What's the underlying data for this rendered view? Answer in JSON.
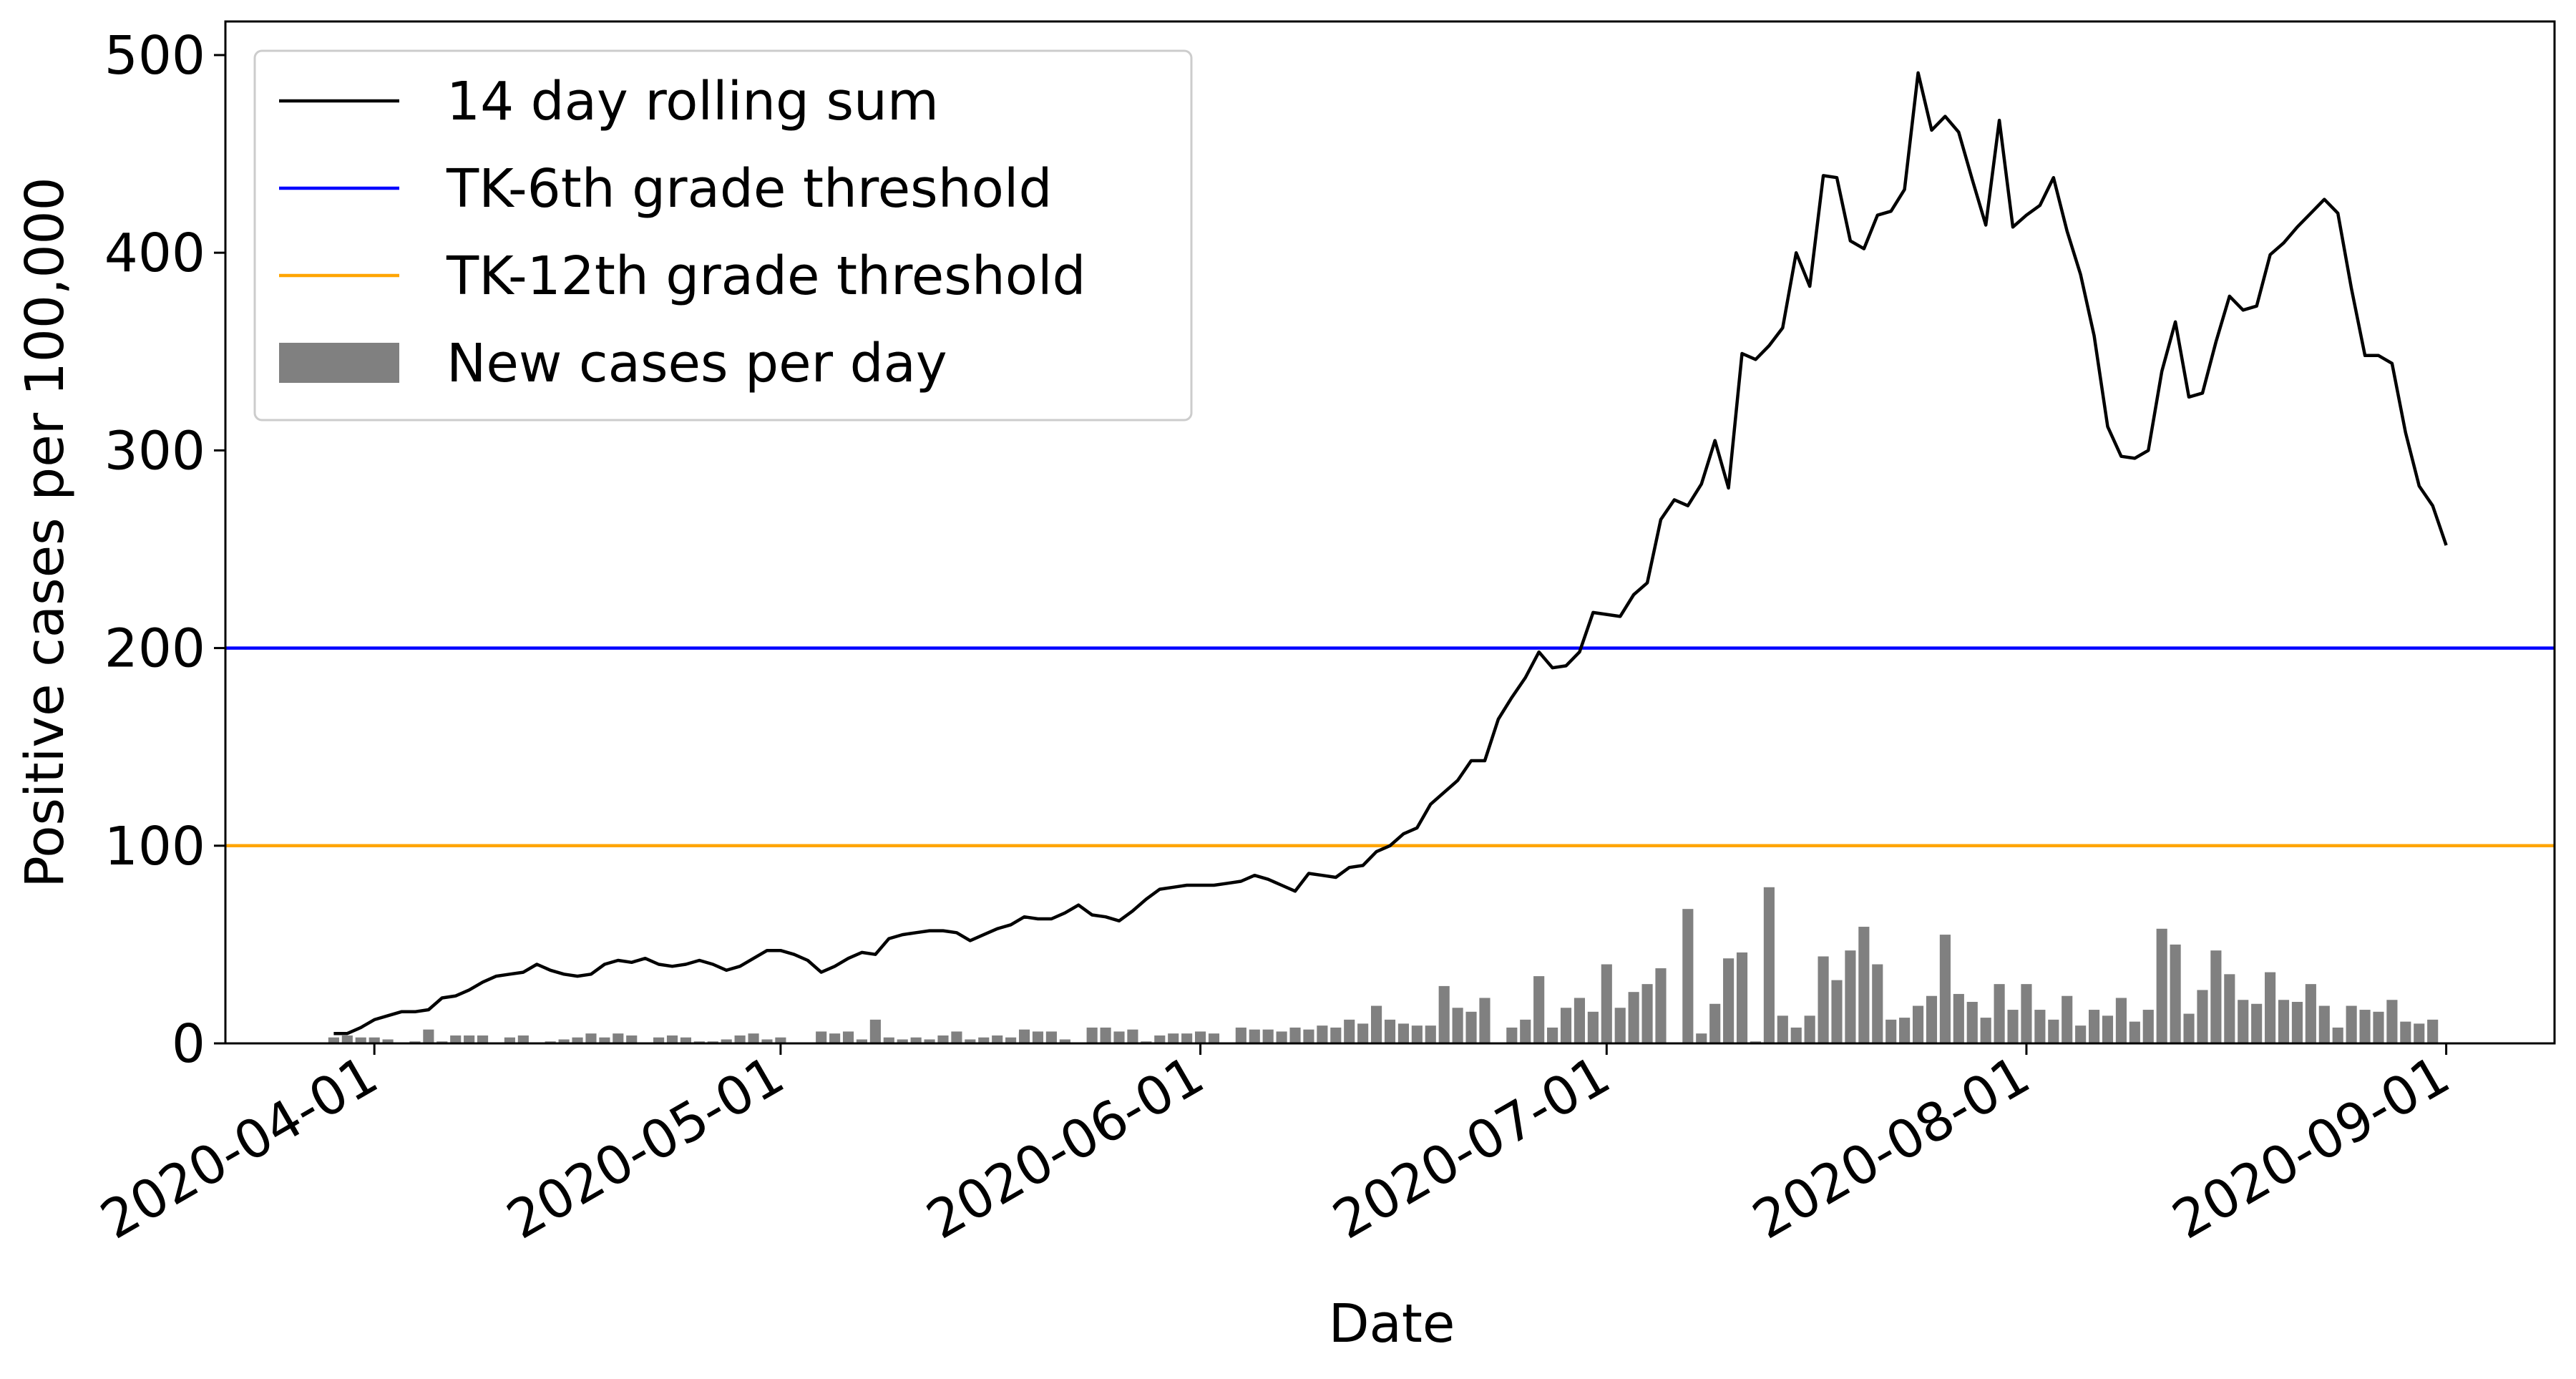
{
  "chart_data": {
    "type": "bar_line",
    "xlabel": "Date",
    "ylabel": "Positive cases per 100,000",
    "x": [
      "2020-03-29",
      "2020-03-30",
      "2020-03-31",
      "2020-04-01",
      "2020-04-02",
      "2020-04-03",
      "2020-04-04",
      "2020-04-05",
      "2020-04-06",
      "2020-04-07",
      "2020-04-08",
      "2020-04-09",
      "2020-04-10",
      "2020-04-11",
      "2020-04-12",
      "2020-04-13",
      "2020-04-14",
      "2020-04-15",
      "2020-04-16",
      "2020-04-17",
      "2020-04-18",
      "2020-04-19",
      "2020-04-20",
      "2020-04-21",
      "2020-04-22",
      "2020-04-23",
      "2020-04-24",
      "2020-04-25",
      "2020-04-26",
      "2020-04-27",
      "2020-04-28",
      "2020-04-29",
      "2020-04-30",
      "2020-05-01",
      "2020-05-02",
      "2020-05-03",
      "2020-05-04",
      "2020-05-05",
      "2020-05-06",
      "2020-05-07",
      "2020-05-08",
      "2020-05-09",
      "2020-05-10",
      "2020-05-11",
      "2020-05-12",
      "2020-05-13",
      "2020-05-14",
      "2020-05-15",
      "2020-05-16",
      "2020-05-17",
      "2020-05-18",
      "2020-05-19",
      "2020-05-20",
      "2020-05-21",
      "2020-05-22",
      "2020-05-23",
      "2020-05-24",
      "2020-05-25",
      "2020-05-26",
      "2020-05-27",
      "2020-05-28",
      "2020-05-29",
      "2020-05-30",
      "2020-05-31",
      "2020-06-01",
      "2020-06-02",
      "2020-06-03",
      "2020-06-04",
      "2020-06-05",
      "2020-06-06",
      "2020-06-07",
      "2020-06-08",
      "2020-06-09",
      "2020-06-10",
      "2020-06-11",
      "2020-06-12",
      "2020-06-13",
      "2020-06-14",
      "2020-06-15",
      "2020-06-16",
      "2020-06-17",
      "2020-06-18",
      "2020-06-19",
      "2020-06-20",
      "2020-06-21",
      "2020-06-22",
      "2020-06-23",
      "2020-06-24",
      "2020-06-25",
      "2020-06-26",
      "2020-06-27",
      "2020-06-28",
      "2020-06-29",
      "2020-06-30",
      "2020-07-01",
      "2020-07-02",
      "2020-07-03",
      "2020-07-04",
      "2020-07-05",
      "2020-07-06",
      "2020-07-07",
      "2020-07-08",
      "2020-07-09",
      "2020-07-10",
      "2020-07-11",
      "2020-07-12",
      "2020-07-13",
      "2020-07-14",
      "2020-07-15",
      "2020-07-16",
      "2020-07-17",
      "2020-07-18",
      "2020-07-19",
      "2020-07-20",
      "2020-07-21",
      "2020-07-22",
      "2020-07-23",
      "2020-07-24",
      "2020-07-25",
      "2020-07-26",
      "2020-07-27",
      "2020-07-28",
      "2020-07-29",
      "2020-07-30",
      "2020-07-31",
      "2020-08-01",
      "2020-08-02",
      "2020-08-03",
      "2020-08-04",
      "2020-08-05",
      "2020-08-06",
      "2020-08-07",
      "2020-08-08",
      "2020-08-09",
      "2020-08-10",
      "2020-08-11",
      "2020-08-12",
      "2020-08-13",
      "2020-08-14",
      "2020-08-15",
      "2020-08-16",
      "2020-08-17",
      "2020-08-18",
      "2020-08-19",
      "2020-08-20",
      "2020-08-21",
      "2020-08-22",
      "2020-08-23",
      "2020-08-24",
      "2020-08-25",
      "2020-08-26",
      "2020-08-27",
      "2020-08-28",
      "2020-08-29",
      "2020-08-30",
      "2020-08-31",
      "2020-09-01"
    ],
    "series": [
      {
        "name": "14 day rolling sum",
        "type": "line",
        "color": "#000000",
        "values": [
          5,
          5,
          8,
          12,
          14,
          16,
          16,
          17,
          23,
          24,
          27,
          31,
          34,
          35,
          36,
          40,
          37,
          35,
          34,
          35,
          40,
          42,
          41,
          43,
          40,
          39,
          40,
          42,
          40,
          37,
          39,
          43,
          47,
          47,
          45,
          42,
          36,
          39,
          43,
          46,
          45,
          53,
          55,
          56,
          57,
          57,
          56,
          52,
          55,
          58,
          60,
          64,
          63,
          63,
          66,
          70,
          65,
          64,
          62,
          67,
          73,
          78,
          79,
          80,
          80,
          80,
          81,
          82,
          85,
          83,
          80,
          77,
          86,
          85,
          84,
          89,
          90,
          97,
          100,
          106,
          109,
          121,
          127,
          133,
          143,
          143,
          164,
          175,
          185,
          198,
          190,
          191,
          198,
          218,
          217,
          216,
          227,
          233,
          265,
          275,
          272,
          283,
          305,
          281,
          349,
          346,
          353,
          362,
          400,
          383,
          439,
          438,
          406,
          402,
          419,
          421,
          432,
          491,
          462,
          469,
          461,
          437,
          414,
          467,
          413,
          419,
          424,
          438,
          411,
          389,
          358,
          312,
          297,
          296,
          300,
          340,
          365,
          327,
          329,
          355,
          378,
          371,
          373,
          399,
          405,
          413,
          420,
          427,
          420,
          382,
          348,
          348,
          344,
          309,
          282,
          272,
          252
        ]
      },
      {
        "name": "TK-6th grade threshold",
        "type": "hline",
        "color": "#0000ff",
        "value": 200
      },
      {
        "name": "TK-12th grade threshold",
        "type": "hline",
        "color": "#ffa500",
        "value": 100
      },
      {
        "name": "New cases per day",
        "type": "bar",
        "color": "#808080",
        "values": [
          3,
          4,
          3,
          3,
          2,
          0,
          1,
          7,
          1,
          4,
          4,
          4,
          0,
          3,
          4,
          0,
          1,
          2,
          3,
          5,
          3,
          5,
          4,
          0,
          3,
          4,
          3,
          1,
          1,
          2,
          4,
          5,
          2,
          3,
          0,
          0,
          6,
          5,
          6,
          2,
          12,
          3,
          2,
          3,
          2,
          4,
          6,
          2,
          3,
          4,
          3,
          7,
          6,
          6,
          2,
          0,
          8,
          8,
          6,
          7,
          1,
          4,
          5,
          5,
          6,
          5,
          0,
          8,
          7,
          7,
          6,
          8,
          7,
          9,
          8,
          12,
          10,
          19,
          12,
          10,
          9,
          9,
          29,
          18,
          16,
          23,
          0,
          8,
          12,
          34,
          8,
          18,
          23,
          16,
          40,
          18,
          26,
          30,
          38,
          0,
          68,
          5,
          20,
          43,
          46,
          1,
          79,
          14,
          8,
          14,
          44,
          32,
          47,
          59,
          40,
          12,
          13,
          19,
          24,
          55,
          25,
          21,
          13,
          30,
          17,
          30,
          17,
          12,
          24,
          9,
          17,
          14,
          23,
          11,
          17,
          58,
          50,
          15,
          27,
          47,
          35,
          22,
          20,
          36,
          22,
          21,
          30,
          19,
          8,
          19,
          17,
          16,
          22,
          11,
          10,
          12,
          0
        ]
      }
    ],
    "xlim": [
      "2020-03-21",
      "2020-09-09"
    ],
    "xticks": [
      "2020-04-01",
      "2020-05-01",
      "2020-06-01",
      "2020-07-01",
      "2020-08-01",
      "2020-09-01"
    ],
    "ylim": [
      0,
      517
    ],
    "yticks": [
      0,
      100,
      200,
      300,
      400,
      500
    ],
    "grid": false,
    "legend": "upper left"
  }
}
